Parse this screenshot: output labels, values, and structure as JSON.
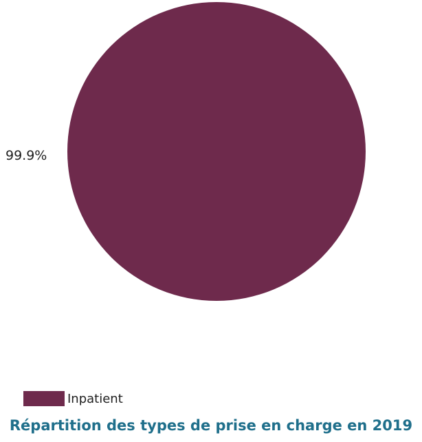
{
  "chart_data": {
    "type": "pie",
    "title": "",
    "slices": [
      {
        "label": "Inpatient",
        "value": 99.9,
        "color": "#6e2a4c"
      }
    ],
    "data_labels": [
      "99.9%"
    ],
    "legend": {
      "placement": "bottom-left",
      "entries": [
        "Inpatient"
      ]
    }
  },
  "caption": "Répartition des types de prise en charge en 2019"
}
